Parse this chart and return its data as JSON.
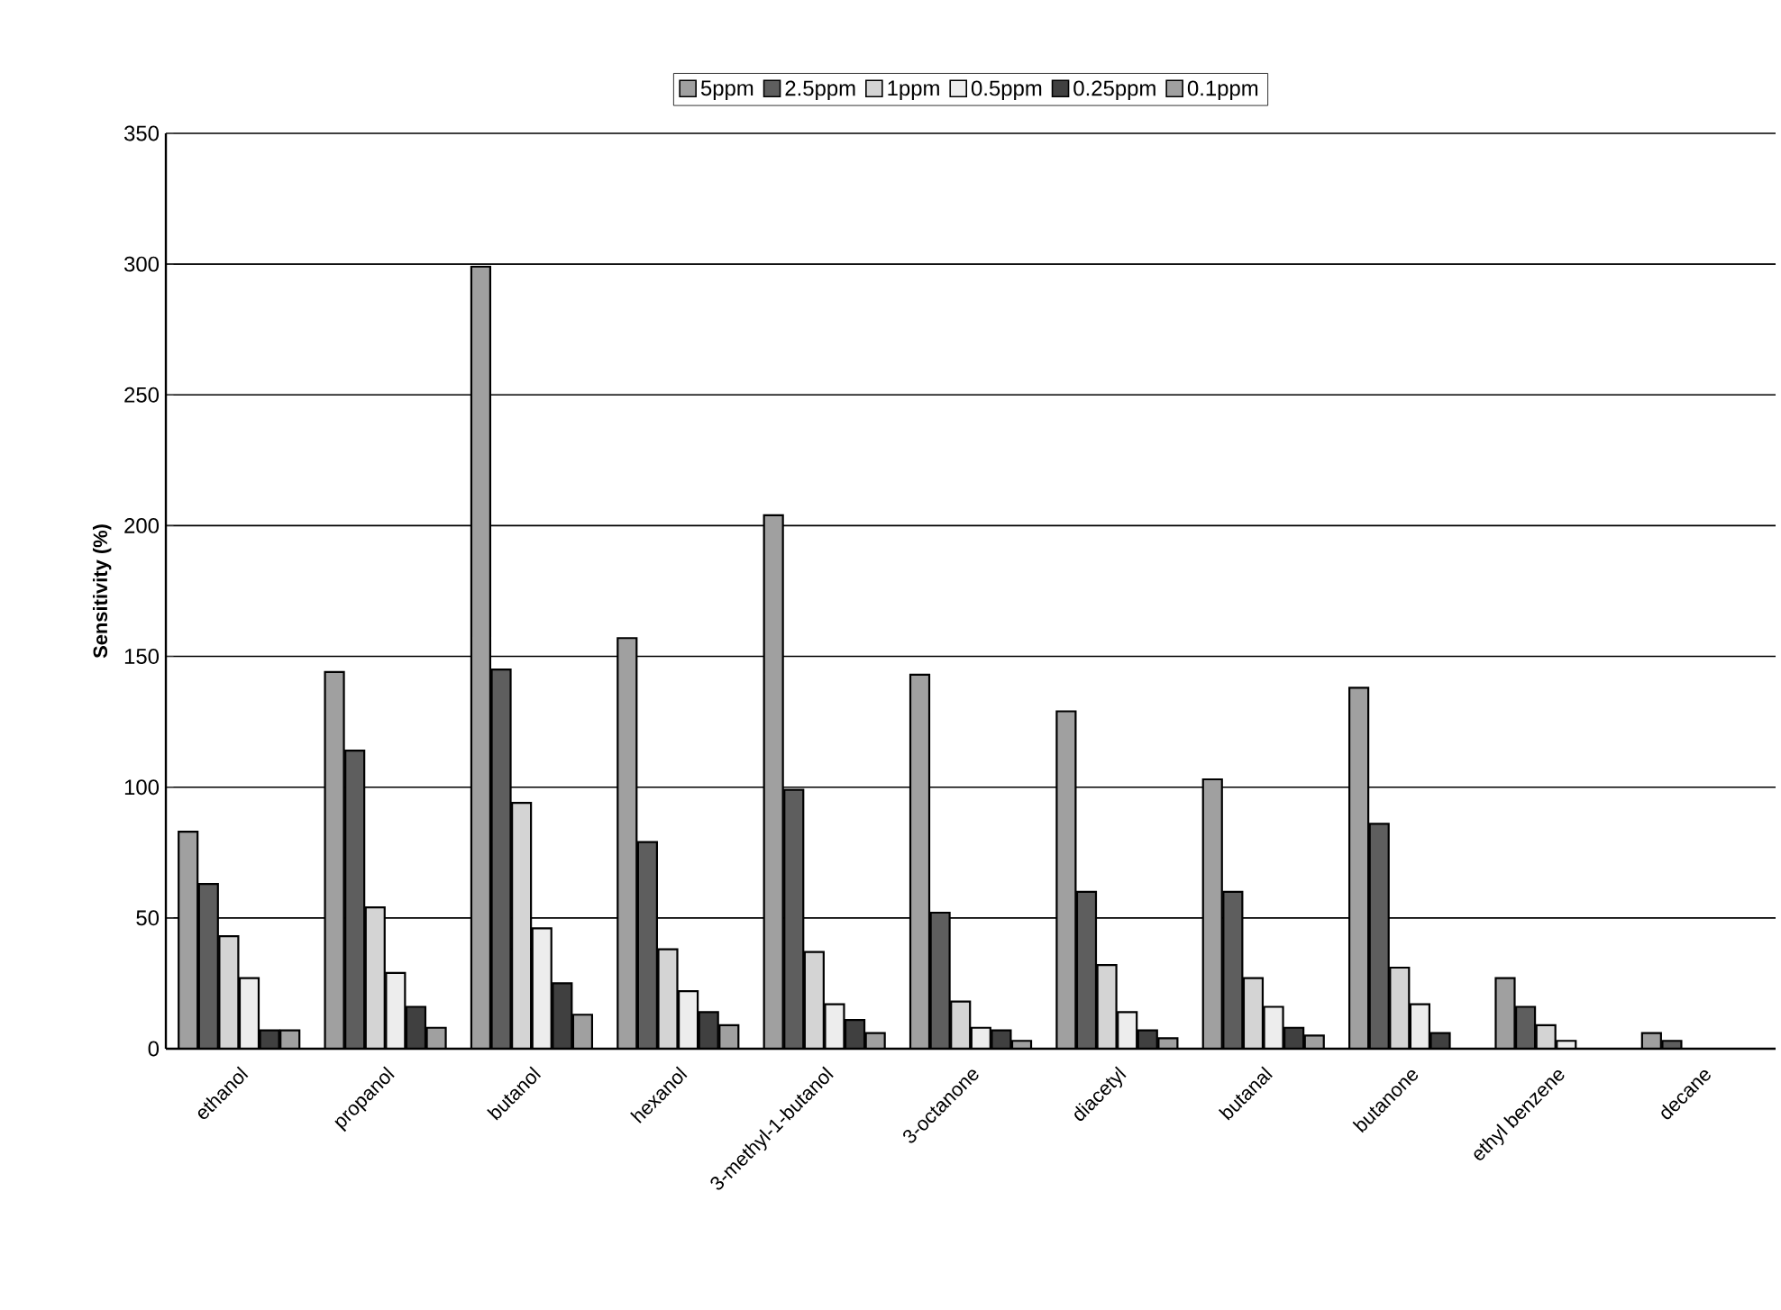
{
  "chart_data": {
    "type": "bar",
    "ylabel": "Sensitivity (%)",
    "categories": [
      "ethanol",
      "propanol",
      "butanol",
      "hexanol",
      "3-methyl-1-butanol",
      "3-octanone",
      "diacetyl",
      "butanal",
      "butanone",
      "ethyl benzene",
      "decane"
    ],
    "series": [
      {
        "name": "5ppm",
        "color": "#a0a0a0",
        "values": [
          83,
          144,
          299,
          157,
          204,
          143,
          129,
          103,
          138,
          27,
          6
        ]
      },
      {
        "name": "2.5ppm",
        "color": "#5e5e5e",
        "values": [
          63,
          114,
          145,
          79,
          99,
          52,
          60,
          60,
          86,
          16,
          3
        ]
      },
      {
        "name": "1ppm",
        "color": "#d4d4d4",
        "values": [
          43,
          54,
          94,
          38,
          37,
          18,
          32,
          27,
          31,
          9,
          null
        ]
      },
      {
        "name": "0.5ppm",
        "color": "#ededed",
        "values": [
          27,
          29,
          46,
          22,
          17,
          8,
          14,
          16,
          17,
          3,
          null
        ]
      },
      {
        "name": "0.25ppm",
        "color": "#404040",
        "values": [
          7,
          16,
          25,
          14,
          11,
          7,
          7,
          8,
          6,
          null,
          null
        ]
      },
      {
        "name": "0.1ppm",
        "color": "#a0a0a0",
        "values": [
          7,
          8,
          13,
          9,
          6,
          3,
          4,
          5,
          null,
          null,
          null
        ]
      }
    ],
    "ylim": [
      0,
      350
    ],
    "yticks": [
      0,
      50,
      100,
      150,
      200,
      250,
      300,
      350
    ],
    "grid": "y",
    "legend": "top"
  }
}
